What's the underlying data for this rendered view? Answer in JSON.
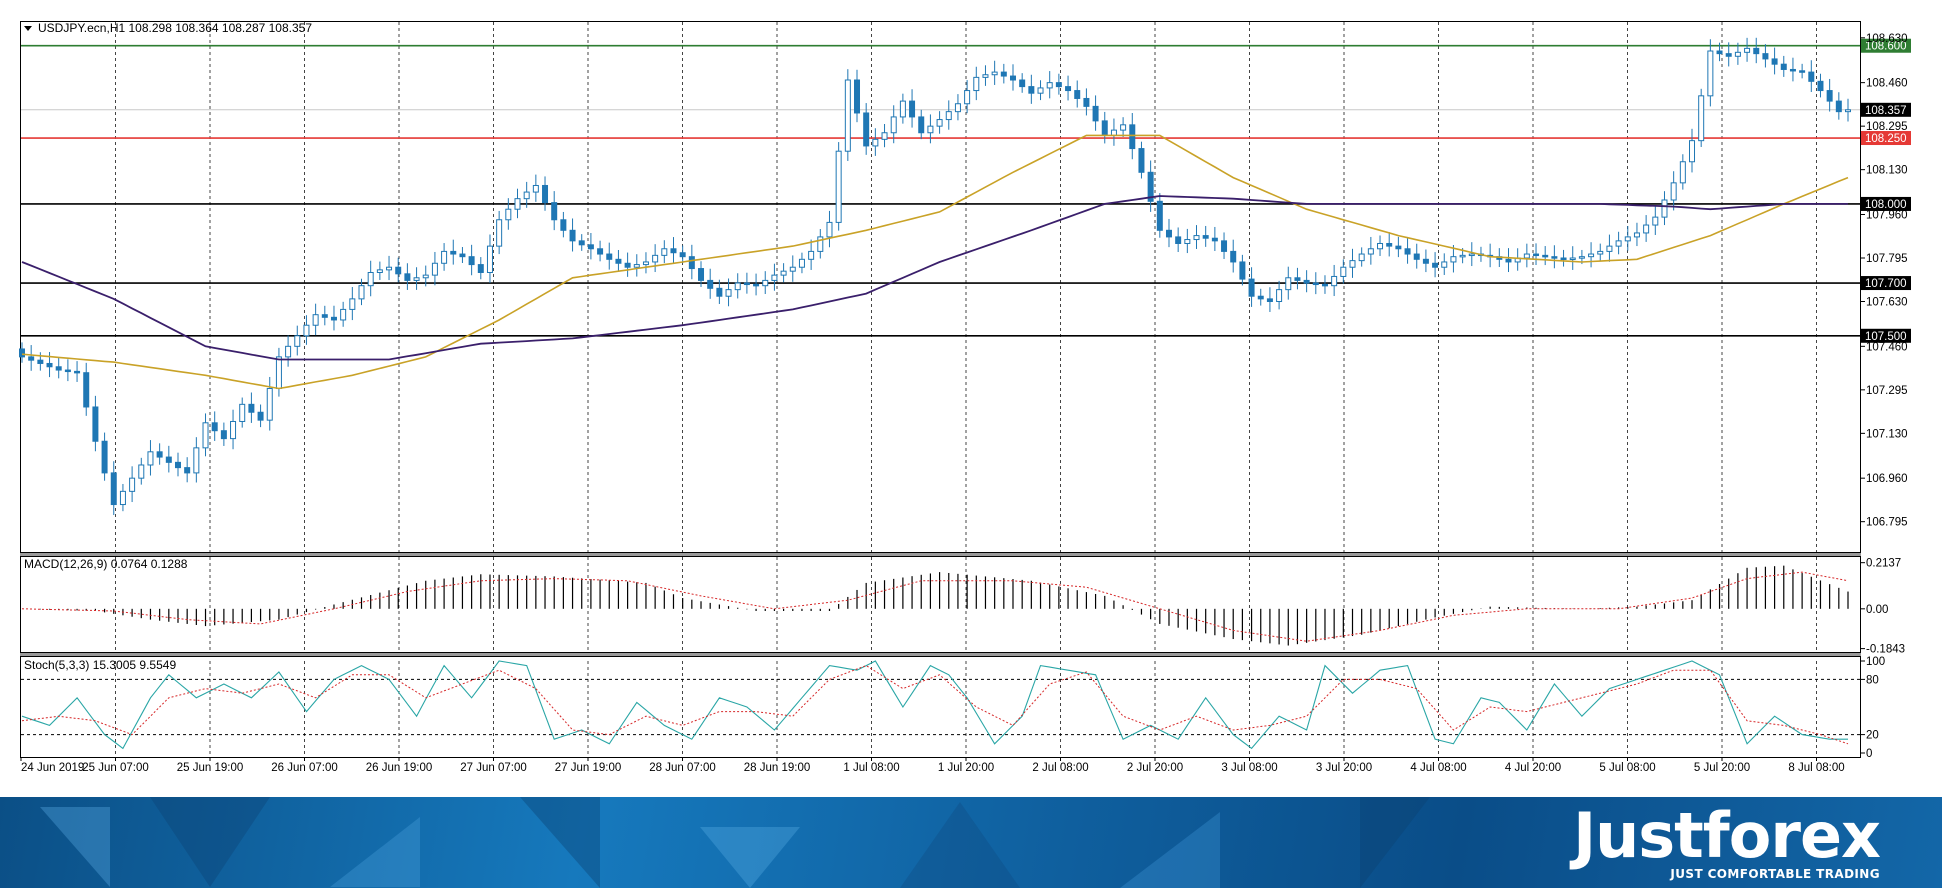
{
  "chart_data": [
    {
      "type": "candlestick",
      "header": "USDJPY.ecn,H1  108.298 108.364 108.287 108.357",
      "ylim": [
        106.68,
        108.69
      ],
      "y_tick_labels": [
        "108.630",
        "108.460",
        "108.295",
        "108.130",
        "107.960",
        "107.795",
        "107.630",
        "107.460",
        "107.295",
        "107.130",
        "106.960",
        "106.795"
      ],
      "y_ticks": [
        108.63,
        108.46,
        108.295,
        108.13,
        107.96,
        107.795,
        107.63,
        107.46,
        107.295,
        107.13,
        106.96,
        106.795
      ],
      "x_tick_labels": [
        "24 Jun 2019",
        "25 Jun 07:00",
        "25 Jun 19:00",
        "26 Jun 07:00",
        "26 Jun 19:00",
        "27 Jun 07:00",
        "27 Jun 19:00",
        "28 Jun 07:00",
        "28 Jun 19:00",
        "1 Jul 08:00",
        "1 Jul 20:00",
        "2 Jul 08:00",
        "2 Jul 20:00",
        "3 Jul 08:00",
        "3 Jul 20:00",
        "4 Jul 08:00",
        "4 Jul 20:00",
        "5 Jul 08:00",
        "5 Jul 20:00",
        "8 Jul 08:00"
      ],
      "horizontal_levels": [
        {
          "label": "108.600",
          "value": 108.6,
          "color": "#2e7d32"
        },
        {
          "label": "108.250",
          "value": 108.25,
          "color": "#e53935"
        },
        {
          "label": "108.000",
          "value": 108.0,
          "color": "#000000"
        },
        {
          "label": "107.700",
          "value": 107.7,
          "color": "#000000"
        },
        {
          "label": "107.500",
          "value": 107.5,
          "color": "#000000"
        }
      ],
      "current_price": {
        "label": "108.357",
        "value": 108.357
      },
      "candle_color": "#1f77b4",
      "close_anchors": [
        [
          0,
          107.42
        ],
        [
          4,
          107.37
        ],
        [
          6,
          107.36
        ],
        [
          8,
          107.1
        ],
        [
          10,
          106.86
        ],
        [
          14,
          107.06
        ],
        [
          18,
          106.98
        ],
        [
          20,
          107.17
        ],
        [
          22,
          107.11
        ],
        [
          24,
          107.24
        ],
        [
          26,
          107.18
        ],
        [
          28,
          107.42
        ],
        [
          30,
          107.5
        ],
        [
          32,
          107.58
        ],
        [
          34,
          107.56
        ],
        [
          36,
          107.64
        ],
        [
          38,
          107.74
        ],
        [
          40,
          107.76
        ],
        [
          42,
          107.71
        ],
        [
          44,
          107.73
        ],
        [
          46,
          107.82
        ],
        [
          48,
          107.8
        ],
        [
          50,
          107.74
        ],
        [
          52,
          107.94
        ],
        [
          54,
          108.02
        ],
        [
          56,
          108.07
        ],
        [
          58,
          107.94
        ],
        [
          60,
          107.86
        ],
        [
          62,
          107.83
        ],
        [
          64,
          107.79
        ],
        [
          66,
          107.76
        ],
        [
          68,
          107.78
        ],
        [
          70,
          107.83
        ],
        [
          72,
          107.8
        ],
        [
          74,
          107.71
        ],
        [
          76,
          107.65
        ],
        [
          78,
          107.7
        ],
        [
          80,
          107.69
        ],
        [
          82,
          107.73
        ],
        [
          84,
          107.76
        ],
        [
          86,
          107.82
        ],
        [
          88,
          107.93
        ],
        [
          90,
          108.47
        ],
        [
          92,
          108.22
        ],
        [
          94,
          108.27
        ],
        [
          96,
          108.39
        ],
        [
          98,
          108.27
        ],
        [
          100,
          108.32
        ],
        [
          102,
          108.38
        ],
        [
          104,
          108.48
        ],
        [
          106,
          108.5
        ],
        [
          108,
          108.47
        ],
        [
          110,
          108.42
        ],
        [
          112,
          108.46
        ],
        [
          114,
          108.43
        ],
        [
          116,
          108.37
        ],
        [
          118,
          108.26
        ],
        [
          120,
          108.3
        ],
        [
          122,
          108.12
        ],
        [
          124,
          107.9
        ],
        [
          126,
          107.85
        ],
        [
          128,
          107.88
        ],
        [
          130,
          107.86
        ],
        [
          132,
          107.78
        ],
        [
          134,
          107.65
        ],
        [
          136,
          107.63
        ],
        [
          138,
          107.72
        ],
        [
          140,
          107.7
        ],
        [
          142,
          107.69
        ],
        [
          144,
          107.76
        ],
        [
          146,
          107.81
        ],
        [
          148,
          107.85
        ],
        [
          150,
          107.83
        ],
        [
          152,
          107.79
        ],
        [
          154,
          107.76
        ],
        [
          156,
          107.8
        ],
        [
          158,
          107.81
        ],
        [
          160,
          107.8
        ],
        [
          162,
          107.78
        ],
        [
          164,
          107.81
        ],
        [
          166,
          107.8
        ],
        [
          168,
          107.79
        ],
        [
          170,
          107.8
        ],
        [
          172,
          107.82
        ],
        [
          174,
          107.86
        ],
        [
          176,
          107.89
        ],
        [
          178,
          107.95
        ],
        [
          180,
          108.08
        ],
        [
          182,
          108.24
        ],
        [
          184,
          108.58
        ],
        [
          186,
          108.56
        ],
        [
          188,
          108.59
        ],
        [
          190,
          108.55
        ],
        [
          192,
          108.51
        ],
        [
          194,
          108.5
        ],
        [
          196,
          108.43
        ],
        [
          198,
          108.35
        ],
        [
          199,
          108.357
        ]
      ],
      "ma_fast_anchors": [
        [
          0,
          107.43
        ],
        [
          10,
          107.4
        ],
        [
          20,
          107.35
        ],
        [
          28,
          107.3
        ],
        [
          36,
          107.35
        ],
        [
          44,
          107.42
        ],
        [
          52,
          107.56
        ],
        [
          60,
          107.72
        ],
        [
          68,
          107.76
        ],
        [
          76,
          107.8
        ],
        [
          84,
          107.84
        ],
        [
          92,
          107.9
        ],
        [
          100,
          107.97
        ],
        [
          108,
          108.12
        ],
        [
          116,
          108.26
        ],
        [
          124,
          108.26
        ],
        [
          132,
          108.1
        ],
        [
          140,
          107.98
        ],
        [
          150,
          107.88
        ],
        [
          160,
          107.8
        ],
        [
          170,
          107.78
        ],
        [
          176,
          107.79
        ],
        [
          184,
          107.88
        ],
        [
          192,
          108.0
        ],
        [
          199,
          108.1
        ]
      ],
      "ma_slow_anchors": [
        [
          0,
          107.78
        ],
        [
          10,
          107.64
        ],
        [
          20,
          107.46
        ],
        [
          28,
          107.41
        ],
        [
          40,
          107.41
        ],
        [
          50,
          107.47
        ],
        [
          60,
          107.49
        ],
        [
          72,
          107.54
        ],
        [
          84,
          107.6
        ],
        [
          92,
          107.66
        ],
        [
          100,
          107.78
        ],
        [
          110,
          107.9
        ],
        [
          118,
          108.0
        ],
        [
          124,
          108.03
        ],
        [
          132,
          108.02
        ],
        [
          140,
          108.0
        ],
        [
          150,
          108.0
        ],
        [
          160,
          108.0
        ],
        [
          172,
          108.0
        ],
        [
          180,
          107.99
        ],
        [
          184,
          107.98
        ],
        [
          192,
          108.0
        ],
        [
          199,
          108.0
        ]
      ]
    },
    {
      "type": "bar",
      "header": "MACD(12,26,9) 0.0764 0.1288",
      "ylim": [
        -0.2,
        0.24
      ],
      "y_tick_labels": [
        "0.2137",
        "0.00",
        "-0.1843"
      ],
      "y_ticks": [
        0.2137,
        0.0,
        -0.1843
      ],
      "macd_anchors": [
        [
          0,
          0.0
        ],
        [
          8,
          -0.01
        ],
        [
          14,
          -0.05
        ],
        [
          20,
          -0.08
        ],
        [
          28,
          -0.05
        ],
        [
          34,
          0.02
        ],
        [
          44,
          0.13
        ],
        [
          50,
          0.16
        ],
        [
          58,
          0.15
        ],
        [
          68,
          0.12
        ],
        [
          72,
          0.05
        ],
        [
          80,
          -0.01
        ],
        [
          88,
          -0.01
        ],
        [
          92,
          0.12
        ],
        [
          100,
          0.17
        ],
        [
          110,
          0.13
        ],
        [
          118,
          0.06
        ],
        [
          124,
          -0.07
        ],
        [
          132,
          -0.14
        ],
        [
          138,
          -0.17
        ],
        [
          146,
          -0.12
        ],
        [
          154,
          -0.04
        ],
        [
          160,
          0.01
        ],
        [
          170,
          0.0
        ],
        [
          176,
          0.01
        ],
        [
          182,
          0.04
        ],
        [
          188,
          0.19
        ],
        [
          192,
          0.2
        ],
        [
          199,
          0.08
        ]
      ],
      "signal_anchors": [
        [
          0,
          0.0
        ],
        [
          10,
          -0.01
        ],
        [
          18,
          -0.05
        ],
        [
          26,
          -0.07
        ],
        [
          34,
          0.0
        ],
        [
          42,
          0.08
        ],
        [
          50,
          0.13
        ],
        [
          58,
          0.14
        ],
        [
          66,
          0.13
        ],
        [
          74,
          0.06
        ],
        [
          82,
          0.0
        ],
        [
          90,
          0.04
        ],
        [
          98,
          0.13
        ],
        [
          108,
          0.13
        ],
        [
          116,
          0.1
        ],
        [
          124,
          0.0
        ],
        [
          132,
          -0.1
        ],
        [
          140,
          -0.15
        ],
        [
          148,
          -0.1
        ],
        [
          156,
          -0.03
        ],
        [
          164,
          0.0
        ],
        [
          174,
          0.0
        ],
        [
          182,
          0.05
        ],
        [
          188,
          0.14
        ],
        [
          194,
          0.17
        ],
        [
          199,
          0.13
        ]
      ]
    },
    {
      "type": "line",
      "header": "Stoch(5,3,3) 15.3005 9.5549",
      "ylim": [
        0,
        100
      ],
      "y_tick_labels": [
        "100",
        "80",
        "20",
        "0"
      ],
      "y_ticks": [
        100,
        80,
        20,
        0
      ],
      "dashed_levels": [
        80,
        20
      ],
      "k_anchors": [
        [
          0,
          40
        ],
        [
          3,
          30
        ],
        [
          6,
          60
        ],
        [
          9,
          20
        ],
        [
          11,
          5
        ],
        [
          14,
          60
        ],
        [
          16,
          85
        ],
        [
          19,
          60
        ],
        [
          22,
          75
        ],
        [
          25,
          60
        ],
        [
          28,
          88
        ],
        [
          31,
          45
        ],
        [
          34,
          80
        ],
        [
          37,
          95
        ],
        [
          40,
          80
        ],
        [
          43,
          40
        ],
        [
          46,
          95
        ],
        [
          49,
          60
        ],
        [
          52,
          100
        ],
        [
          55,
          95
        ],
        [
          58,
          15
        ],
        [
          61,
          25
        ],
        [
          64,
          10
        ],
        [
          67,
          55
        ],
        [
          70,
          30
        ],
        [
          73,
          15
        ],
        [
          76,
          60
        ],
        [
          79,
          50
        ],
        [
          82,
          25
        ],
        [
          85,
          60
        ],
        [
          88,
          95
        ],
        [
          91,
          90
        ],
        [
          93,
          100
        ],
        [
          96,
          50
        ],
        [
          99,
          95
        ],
        [
          101,
          85
        ],
        [
          103,
          60
        ],
        [
          106,
          10
        ],
        [
          109,
          40
        ],
        [
          111,
          95
        ],
        [
          114,
          90
        ],
        [
          117,
          85
        ],
        [
          120,
          15
        ],
        [
          123,
          30
        ],
        [
          126,
          15
        ],
        [
          129,
          60
        ],
        [
          132,
          20
        ],
        [
          134,
          5
        ],
        [
          137,
          40
        ],
        [
          140,
          25
        ],
        [
          142,
          95
        ],
        [
          145,
          65
        ],
        [
          148,
          90
        ],
        [
          151,
          95
        ],
        [
          154,
          15
        ],
        [
          156,
          10
        ],
        [
          159,
          60
        ],
        [
          161,
          55
        ],
        [
          164,
          25
        ],
        [
          167,
          75
        ],
        [
          170,
          40
        ],
        [
          173,
          70
        ],
        [
          176,
          80
        ],
        [
          179,
          90
        ],
        [
          182,
          100
        ],
        [
          185,
          85
        ],
        [
          188,
          10
        ],
        [
          191,
          40
        ],
        [
          194,
          20
        ],
        [
          197,
          15
        ],
        [
          199,
          15
        ]
      ],
      "d_anchors": [
        [
          0,
          35
        ],
        [
          4,
          40
        ],
        [
          8,
          35
        ],
        [
          12,
          20
        ],
        [
          16,
          60
        ],
        [
          20,
          70
        ],
        [
          24,
          65
        ],
        [
          28,
          75
        ],
        [
          32,
          60
        ],
        [
          36,
          85
        ],
        [
          40,
          85
        ],
        [
          44,
          60
        ],
        [
          48,
          75
        ],
        [
          52,
          90
        ],
        [
          56,
          70
        ],
        [
          60,
          25
        ],
        [
          64,
          20
        ],
        [
          68,
          40
        ],
        [
          72,
          30
        ],
        [
          76,
          45
        ],
        [
          80,
          45
        ],
        [
          84,
          40
        ],
        [
          88,
          80
        ],
        [
          92,
          95
        ],
        [
          96,
          70
        ],
        [
          100,
          85
        ],
        [
          104,
          50
        ],
        [
          108,
          30
        ],
        [
          112,
          75
        ],
        [
          116,
          88
        ],
        [
          120,
          40
        ],
        [
          124,
          25
        ],
        [
          128,
          40
        ],
        [
          132,
          25
        ],
        [
          136,
          30
        ],
        [
          140,
          40
        ],
        [
          144,
          80
        ],
        [
          148,
          80
        ],
        [
          152,
          70
        ],
        [
          156,
          25
        ],
        [
          160,
          50
        ],
        [
          164,
          45
        ],
        [
          168,
          55
        ],
        [
          172,
          65
        ],
        [
          176,
          75
        ],
        [
          180,
          90
        ],
        [
          184,
          90
        ],
        [
          188,
          35
        ],
        [
          192,
          30
        ],
        [
          196,
          20
        ],
        [
          199,
          10
        ]
      ]
    }
  ],
  "brand": {
    "name": "Justforex",
    "tagline": "JUST COMFORTABLE TRADING"
  }
}
